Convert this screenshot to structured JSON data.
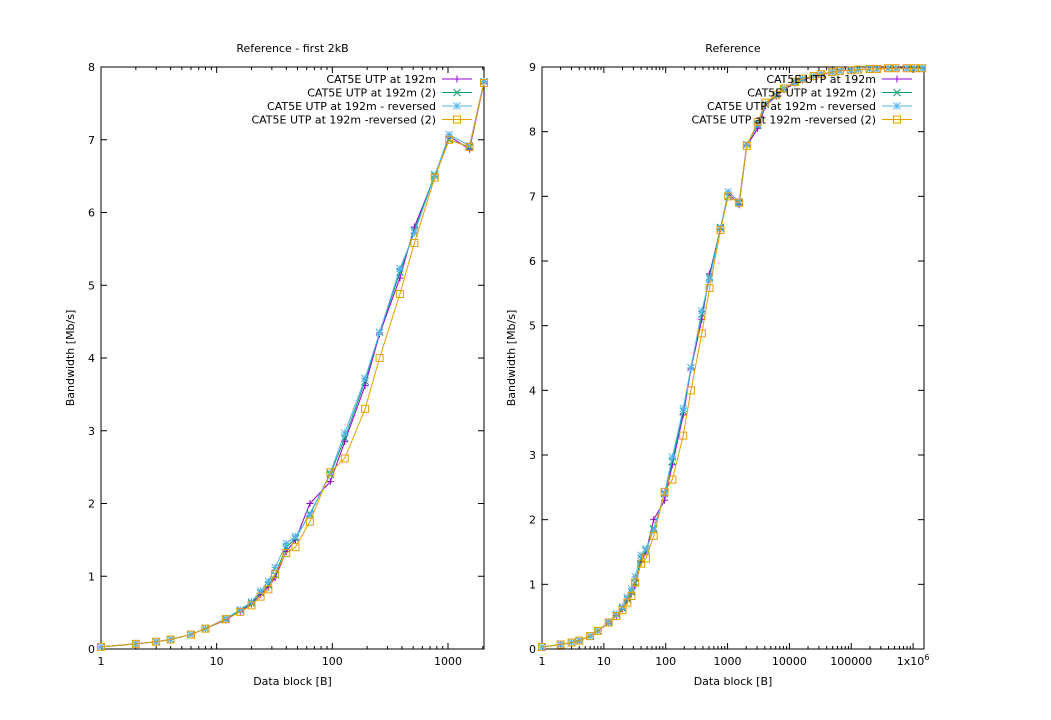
{
  "chart_data": [
    {
      "type": "line",
      "title": "Reference - first 2kB",
      "xlabel": "Data block [B]",
      "ylabel": "Bandwidth [Mb/s]",
      "xscale": "log",
      "xlim": [
        1,
        2048
      ],
      "ylim": [
        0,
        8
      ],
      "xticks": [
        1,
        10,
        100,
        1000
      ],
      "xtick_labels": [
        "1",
        "10",
        "100",
        "1000"
      ],
      "yticks": [
        0,
        1,
        2,
        3,
        4,
        5,
        6,
        7,
        8
      ],
      "ytick_labels": [
        "0",
        "1",
        "2",
        "3",
        "4",
        "5",
        "6",
        "7",
        "8"
      ],
      "grid": false,
      "legend_position": "top-right",
      "x": [
        1,
        2,
        3,
        4,
        6,
        8,
        12,
        16,
        20,
        24,
        28,
        32,
        40,
        48,
        64,
        96,
        128,
        192,
        256,
        384,
        512,
        768,
        1024,
        1536,
        2048
      ],
      "series": [
        {
          "name": "CAT5E UTP at 192m",
          "color": "#9400d3",
          "marker": "plus",
          "values": [
            0.03,
            0.07,
            0.1,
            0.13,
            0.2,
            0.28,
            0.4,
            0.52,
            0.62,
            0.75,
            0.85,
            0.98,
            1.34,
            1.5,
            2.0,
            2.3,
            2.85,
            3.62,
            4.33,
            5.1,
            5.8,
            6.5,
            7.05,
            6.87,
            7.78
          ]
        },
        {
          "name": "CAT5E UTP at 192m (2)",
          "color": "#009e73",
          "marker": "x",
          "values": [
            0.03,
            0.07,
            0.1,
            0.13,
            0.2,
            0.28,
            0.41,
            0.53,
            0.63,
            0.77,
            0.88,
            1.02,
            1.4,
            1.52,
            1.86,
            2.4,
            2.9,
            3.68,
            4.35,
            5.18,
            5.75,
            6.52,
            7.0,
            6.9,
            7.8
          ]
        },
        {
          "name": "CAT5E UTP at 192m - reversed",
          "color": "#56b4e9",
          "marker": "star",
          "values": [
            0.03,
            0.07,
            0.1,
            0.13,
            0.2,
            0.28,
            0.42,
            0.54,
            0.65,
            0.8,
            0.93,
            1.12,
            1.45,
            1.55,
            1.84,
            2.42,
            2.97,
            3.72,
            4.35,
            5.23,
            5.72,
            6.5,
            7.07,
            6.92,
            7.8
          ]
        },
        {
          "name": "CAT5E UTP at 192m -reversed (2)",
          "color": "#e69f00",
          "marker": "square",
          "values": [
            0.03,
            0.07,
            0.1,
            0.13,
            0.2,
            0.28,
            0.41,
            0.51,
            0.6,
            0.72,
            0.82,
            1.03,
            1.32,
            1.4,
            1.75,
            2.43,
            2.62,
            3.3,
            4.0,
            4.88,
            5.58,
            6.48,
            7.0,
            6.9,
            7.78
          ]
        }
      ]
    },
    {
      "type": "line",
      "title": "Reference",
      "xlabel": "Data block [B]",
      "ylabel": "Bandwidth [Mb/s]",
      "xscale": "log",
      "xlim": [
        1,
        1500000
      ],
      "ylim": [
        0,
        9
      ],
      "xticks": [
        1,
        10,
        100,
        1000,
        10000,
        100000,
        1000000
      ],
      "xtick_labels": [
        "1",
        "10",
        "100",
        "1000",
        "10000",
        "100000",
        "1x10"
      ],
      "xtick_exponent": "6",
      "yticks": [
        0,
        1,
        2,
        3,
        4,
        5,
        6,
        7,
        8,
        9
      ],
      "ytick_labels": [
        "0",
        "1",
        "2",
        "3",
        "4",
        "5",
        "6",
        "7",
        "8",
        "9"
      ],
      "grid": false,
      "legend_position": "top-right",
      "x": [
        1,
        2,
        3,
        4,
        6,
        8,
        12,
        16,
        20,
        24,
        28,
        32,
        40,
        48,
        64,
        96,
        128,
        192,
        256,
        384,
        512,
        768,
        1024,
        1536,
        2048,
        3072,
        4096,
        6144,
        8192,
        12288,
        16384,
        24576,
        32768,
        49152,
        65536,
        98304,
        131072,
        196608,
        262144,
        393216,
        524288,
        786432,
        1048576,
        1400000
      ],
      "series": [
        {
          "name": "CAT5E UTP at 192m",
          "color": "#9400d3",
          "marker": "plus",
          "values": [
            0.03,
            0.07,
            0.1,
            0.13,
            0.2,
            0.28,
            0.4,
            0.52,
            0.62,
            0.75,
            0.85,
            0.98,
            1.34,
            1.5,
            2.0,
            2.3,
            2.85,
            3.62,
            4.33,
            5.1,
            5.8,
            6.5,
            7.05,
            6.87,
            7.78,
            8.05,
            8.4,
            8.55,
            8.65,
            8.75,
            8.8,
            8.85,
            8.88,
            8.92,
            8.94,
            8.95,
            8.96,
            8.97,
            8.97,
            8.98,
            8.98,
            8.98,
            8.98,
            8.98
          ]
        },
        {
          "name": "CAT5E UTP at 192m (2)",
          "color": "#009e73",
          "marker": "x",
          "values": [
            0.03,
            0.07,
            0.1,
            0.13,
            0.2,
            0.28,
            0.41,
            0.53,
            0.63,
            0.77,
            0.88,
            1.02,
            1.4,
            1.52,
            1.86,
            2.4,
            2.9,
            3.68,
            4.35,
            5.18,
            5.75,
            6.52,
            7.0,
            6.9,
            7.8,
            8.1,
            8.42,
            8.56,
            8.66,
            8.76,
            8.81,
            8.86,
            8.89,
            8.92,
            8.94,
            8.95,
            8.96,
            8.97,
            8.97,
            8.98,
            8.98,
            8.98,
            8.98,
            8.98
          ]
        },
        {
          "name": "CAT5E UTP at 192m - reversed",
          "color": "#56b4e9",
          "marker": "star",
          "values": [
            0.03,
            0.07,
            0.1,
            0.13,
            0.2,
            0.28,
            0.42,
            0.54,
            0.65,
            0.8,
            0.93,
            1.12,
            1.45,
            1.55,
            1.84,
            2.42,
            2.97,
            3.72,
            4.35,
            5.23,
            5.72,
            6.5,
            7.07,
            6.92,
            7.8,
            8.12,
            8.43,
            8.57,
            8.67,
            8.77,
            8.82,
            8.86,
            8.89,
            8.92,
            8.94,
            8.95,
            8.96,
            8.97,
            8.97,
            8.98,
            8.98,
            8.98,
            8.98,
            8.98
          ]
        },
        {
          "name": "CAT5E UTP at 192m -reversed (2)",
          "color": "#e69f00",
          "marker": "square",
          "values": [
            0.03,
            0.07,
            0.1,
            0.13,
            0.2,
            0.28,
            0.41,
            0.51,
            0.6,
            0.72,
            0.82,
            1.03,
            1.32,
            1.4,
            1.75,
            2.43,
            2.62,
            3.3,
            4.0,
            4.88,
            5.58,
            6.48,
            7.0,
            6.9,
            7.78,
            8.15,
            8.45,
            8.57,
            8.67,
            8.77,
            8.82,
            8.86,
            8.89,
            8.92,
            8.94,
            8.95,
            8.96,
            8.97,
            8.97,
            8.98,
            8.98,
            8.98,
            8.98,
            8.98
          ]
        }
      ]
    }
  ]
}
